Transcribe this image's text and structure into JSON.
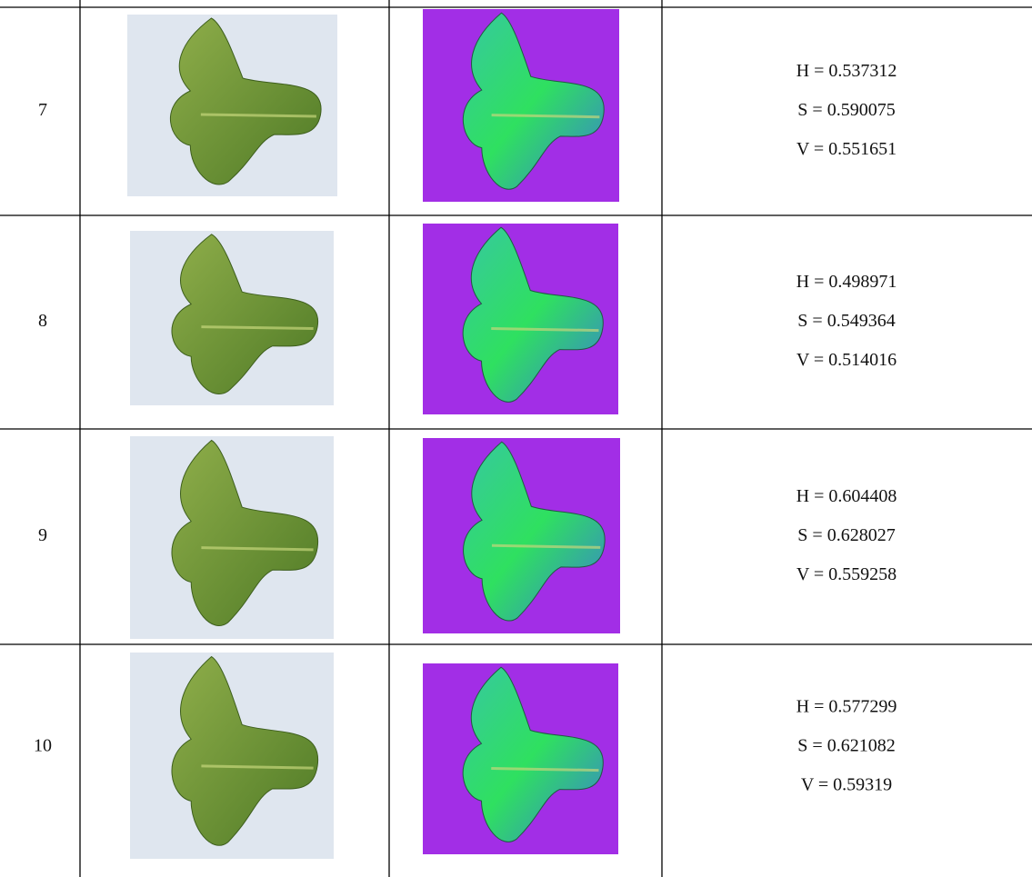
{
  "table": {
    "rows": [
      {
        "index": "7",
        "values": [
          "H = 0.537312",
          "S = 0.590075",
          "V = 0.551651"
        ]
      },
      {
        "index": "8",
        "values": [
          "H = 0.498971",
          "S = 0.549364",
          "V = 0.514016"
        ]
      },
      {
        "index": "9",
        "values": [
          "H = 0.604408",
          "S = 0.628027",
          "V = 0.559258"
        ]
      },
      {
        "index": "10",
        "values": [
          "H = 0.577299",
          "S = 0.621082",
          "V = 0.59319"
        ]
      }
    ]
  }
}
